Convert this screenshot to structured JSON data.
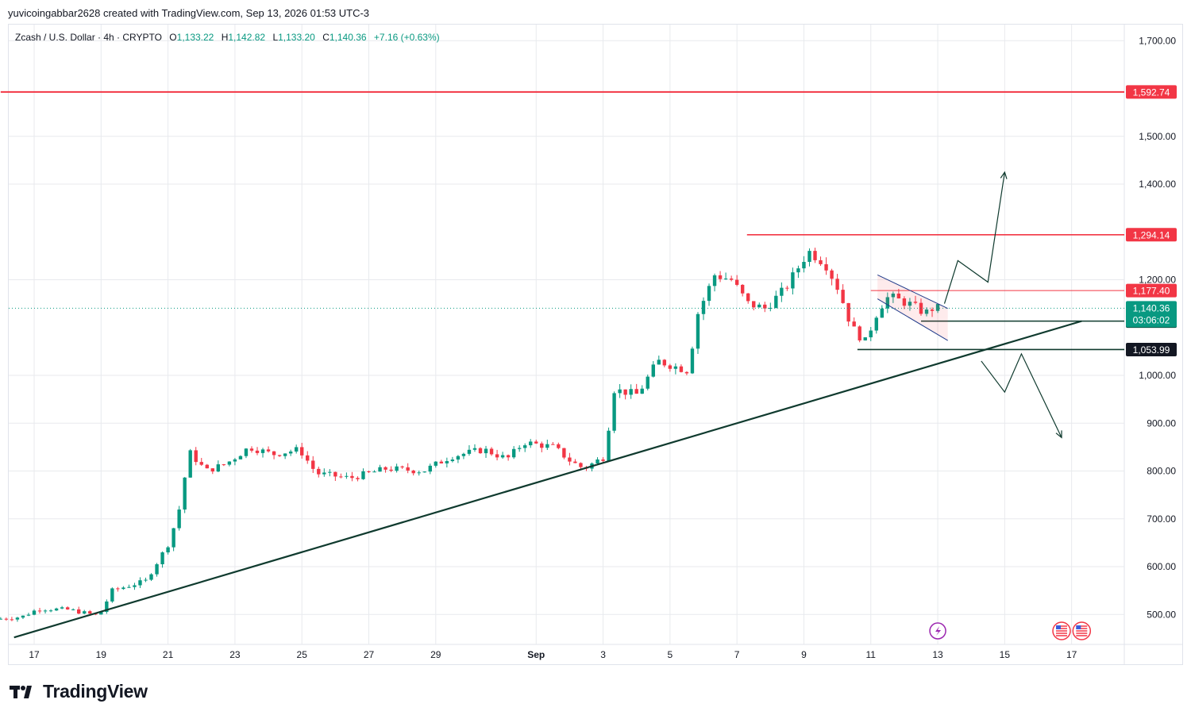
{
  "credit": "yuvicoingabbar2628 created with TradingView.com, Sep 13, 2026 01:53 UTC-3",
  "legend": {
    "symbol": "Zcash / U.S. Dollar · 4h · CRYPTO",
    "open_label": "O",
    "open": "1,133.22",
    "high_label": "H",
    "high": "1,142.82",
    "low_label": "L",
    "low": "1,133.20",
    "close_label": "C",
    "close": "1,140.36",
    "change": "+7.16 (+0.63%)"
  },
  "brand": "TradingView",
  "colors": {
    "up": "#089981",
    "down": "#f23645",
    "trend": "#0f3a2e",
    "grid": "#e8eaee"
  },
  "chart_data": {
    "type": "candlestick",
    "timeframe": "4h",
    "y_ticks": [
      "1,700.00",
      "1,500.00",
      "1,400.00",
      "1,200.00",
      "1,000.00",
      "900.00",
      "800.00",
      "700.00",
      "600.00",
      "500.00"
    ],
    "ylim": [
      460,
      1740
    ],
    "x_ticks": [
      {
        "label": "17",
        "day": 17
      },
      {
        "label": "19",
        "day": 19
      },
      {
        "label": "21",
        "day": 21
      },
      {
        "label": "23",
        "day": 23
      },
      {
        "label": "25",
        "day": 25
      },
      {
        "label": "27",
        "day": 27
      },
      {
        "label": "29",
        "day": 29
      },
      {
        "label": "Sep",
        "day": 32
      },
      {
        "label": "3",
        "day": 34
      },
      {
        "label": "5",
        "day": 36
      },
      {
        "label": "7",
        "day": 38
      },
      {
        "label": "9",
        "day": 40
      },
      {
        "label": "11",
        "day": 42
      },
      {
        "label": "13",
        "day": 44
      },
      {
        "label": "15",
        "day": 46
      },
      {
        "label": "17",
        "day": 48
      }
    ],
    "waypoints": [
      {
        "day": 16.0,
        "price": 490
      },
      {
        "day": 16.8,
        "price": 495
      },
      {
        "day": 17.3,
        "price": 512
      },
      {
        "day": 18.2,
        "price": 510
      },
      {
        "day": 19.1,
        "price": 497
      },
      {
        "day": 19.5,
        "price": 550
      },
      {
        "day": 20.5,
        "price": 570
      },
      {
        "day": 21.2,
        "price": 650
      },
      {
        "day": 21.5,
        "price": 720
      },
      {
        "day": 21.8,
        "price": 840
      },
      {
        "day": 22.3,
        "price": 800
      },
      {
        "day": 22.9,
        "price": 815
      },
      {
        "day": 23.6,
        "price": 850
      },
      {
        "day": 24.3,
        "price": 835
      },
      {
        "day": 25.1,
        "price": 845
      },
      {
        "day": 25.6,
        "price": 795
      },
      {
        "day": 26.6,
        "price": 785
      },
      {
        "day": 27.7,
        "price": 805
      },
      {
        "day": 28.8,
        "price": 800
      },
      {
        "day": 29.6,
        "price": 830
      },
      {
        "day": 30.6,
        "price": 845
      },
      {
        "day": 31.3,
        "price": 825
      },
      {
        "day": 31.8,
        "price": 860
      },
      {
        "day": 32.7,
        "price": 850
      },
      {
        "day": 33.2,
        "price": 820
      },
      {
        "day": 33.6,
        "price": 805
      },
      {
        "day": 34.2,
        "price": 830
      },
      {
        "day": 34.5,
        "price": 970
      },
      {
        "day": 35.2,
        "price": 960
      },
      {
        "day": 35.8,
        "price": 1030
      },
      {
        "day": 36.7,
        "price": 1010
      },
      {
        "day": 37.0,
        "price": 1130
      },
      {
        "day": 37.5,
        "price": 1210
      },
      {
        "day": 38.0,
        "price": 1200
      },
      {
        "day": 38.5,
        "price": 1150
      },
      {
        "day": 39.0,
        "price": 1140
      },
      {
        "day": 39.6,
        "price": 1180
      },
      {
        "day": 40.3,
        "price": 1260
      },
      {
        "day": 40.8,
        "price": 1235
      },
      {
        "day": 41.2,
        "price": 1180
      },
      {
        "day": 41.6,
        "price": 1100
      },
      {
        "day": 42.0,
        "price": 1070
      },
      {
        "day": 42.4,
        "price": 1140
      },
      {
        "day": 42.7,
        "price": 1165
      },
      {
        "day": 43.3,
        "price": 1150
      },
      {
        "day": 43.8,
        "price": 1130
      },
      {
        "day": 44.0,
        "price": 1140
      }
    ],
    "levels": [
      {
        "name": "resistance-high",
        "price": 1592.74,
        "label": "1,592.74",
        "color": "#f23645",
        "start_day": 16.0
      },
      {
        "name": "resistance",
        "price": 1294.14,
        "label": "1,294.14",
        "color": "#f23645",
        "start_day": 38.3
      },
      {
        "name": "flag-top",
        "price": 1177.4,
        "label": "1,177.40",
        "color": "#f23645",
        "start_day": 42.0
      },
      {
        "name": "breakout",
        "price": 1113.49,
        "label": "1,113.49",
        "color": "#0f3a2e",
        "start_day": 43.5
      },
      {
        "name": "support",
        "price": 1053.99,
        "label": "1,053.99",
        "color": "#0f3a2e",
        "start_day": 41.6
      }
    ],
    "last_price": {
      "price": 1140.36,
      "label": "1,140.36",
      "countdown": "03:06:02"
    },
    "trendline": [
      {
        "day": 16.4,
        "price": 452
      },
      {
        "day": 48.3,
        "price": 1113.49
      }
    ],
    "bull_path": [
      {
        "day": 44.2,
        "price": 1150
      },
      {
        "day": 44.6,
        "price": 1240
      },
      {
        "day": 45.5,
        "price": 1195
      },
      {
        "day": 46.0,
        "price": 1425
      }
    ],
    "bear_path": [
      {
        "day": 45.3,
        "price": 1030
      },
      {
        "day": 46.0,
        "price": 965
      },
      {
        "day": 46.5,
        "price": 1045
      },
      {
        "day": 47.7,
        "price": 870
      }
    ],
    "flag_channel": {
      "upper": [
        {
          "day": 42.2,
          "price": 1210
        },
        {
          "day": 44.3,
          "price": 1140
        }
      ],
      "lower": [
        {
          "day": 42.2,
          "price": 1160
        },
        {
          "day": 44.3,
          "price": 1073
        }
      ]
    },
    "event_icons": [
      {
        "day": 44.0,
        "kind": "lightning"
      },
      {
        "day": 47.7,
        "kind": "us-flag"
      },
      {
        "day": 48.3,
        "kind": "us-flag"
      }
    ]
  }
}
